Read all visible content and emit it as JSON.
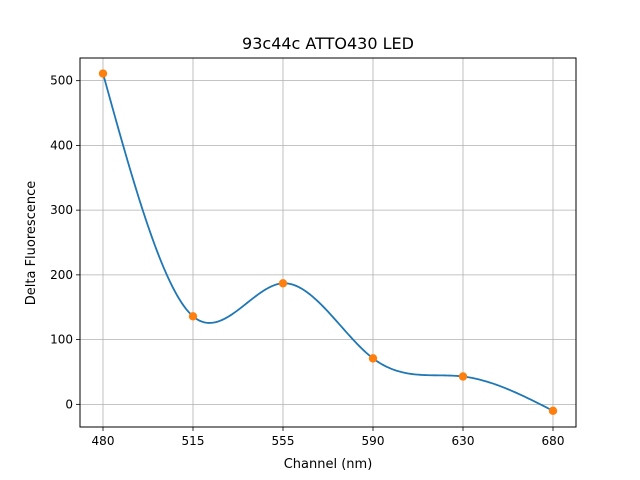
{
  "chart_data": {
    "type": "line",
    "title": "93c44c ATTO430 LED",
    "xlabel": "Channel (nm)",
    "ylabel": "Delta Fluorescence",
    "categories": [
      "480",
      "515",
      "555",
      "590",
      "630",
      "680"
    ],
    "series": [
      {
        "values": [
          511,
          136,
          187,
          71,
          43,
          -10
        ],
        "color": "#ff7f0e",
        "marker": "circle"
      }
    ],
    "smooth_curve_color": "#1f77b4",
    "y_ticks": [
      0,
      100,
      200,
      300,
      400,
      500
    ],
    "ylim": [
      -35,
      535
    ],
    "grid": true
  }
}
